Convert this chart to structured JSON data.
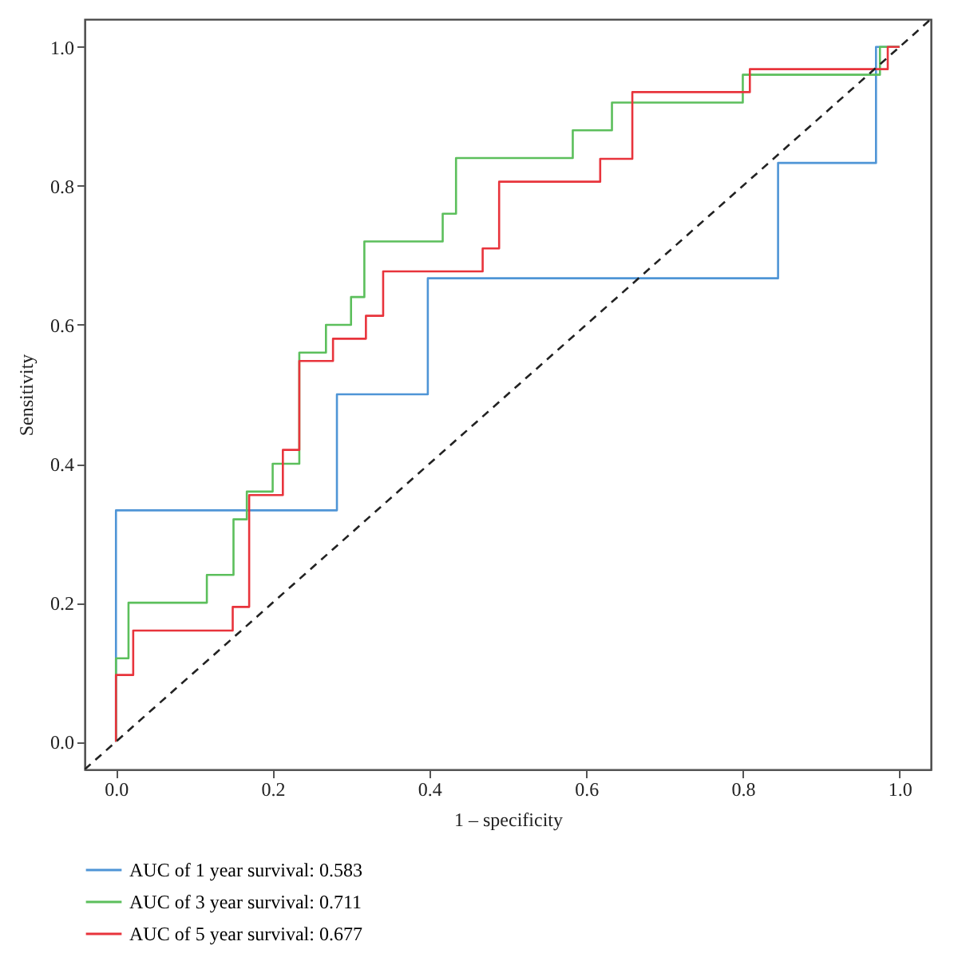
{
  "chart_data": {
    "type": "step",
    "xlabel": "1 – specificity",
    "ylabel": "Sensitivity",
    "xlim": [
      -0.04,
      1.04
    ],
    "ylim": [
      -0.04,
      1.04
    ],
    "xticks": [
      {
        "value": 0,
        "label": "0.0"
      },
      {
        "value": 0.2,
        "label": "0.2"
      },
      {
        "value": 0.4,
        "label": "0.4"
      },
      {
        "value": 0.6,
        "label": "0.6"
      },
      {
        "value": 0.8,
        "label": "0.8"
      },
      {
        "value": 1,
        "label": "1.0"
      }
    ],
    "yticks": [
      {
        "value": 0,
        "label": "0.0"
      },
      {
        "value": 0.2,
        "label": "0.2"
      },
      {
        "value": 0.4,
        "label": "0.4"
      },
      {
        "value": 0.6,
        "label": "0.6"
      },
      {
        "value": 0.8,
        "label": "0.8"
      },
      {
        "value": 1,
        "label": "1.0"
      }
    ],
    "grid": false,
    "legend": "bottom",
    "series": [
      {
        "name": "AUC of 1 year survival: 0.583",
        "color": "#4f95d6",
        "x": [
          0,
          0,
          0.282,
          0.398,
          0.845,
          0.97,
          1
        ],
        "values": [
          0,
          0.333,
          0.5,
          0.667,
          0.833,
          1,
          1
        ]
      },
      {
        "name": "AUC of 3 year survival: 0.711",
        "color": "#5cbf5c",
        "x": [
          0,
          0,
          0.016,
          0.116,
          0.15,
          0.167,
          0.2,
          0.234,
          0.268,
          0.3,
          0.317,
          0.417,
          0.434,
          0.583,
          0.633,
          0.8,
          0.975,
          1
        ],
        "values": [
          0,
          0.12,
          0.2,
          0.24,
          0.32,
          0.36,
          0.4,
          0.56,
          0.6,
          0.64,
          0.72,
          0.76,
          0.84,
          0.88,
          0.92,
          0.96,
          1,
          1
        ]
      },
      {
        "name": "AUC of 5 year survival: 0.677",
        "color": "#e8343c",
        "x": [
          0,
          0,
          0.022,
          0.149,
          0.17,
          0.213,
          0.234,
          0.277,
          0.319,
          0.341,
          0.468,
          0.489,
          0.618,
          0.659,
          0.809,
          0.985,
          1
        ],
        "values": [
          0,
          0.096,
          0.16,
          0.194,
          0.355,
          0.42,
          0.548,
          0.58,
          0.613,
          0.677,
          0.71,
          0.806,
          0.839,
          0.935,
          0.968,
          1,
          1
        ]
      },
      {
        "type": "line",
        "color": "#222222",
        "line_style": "dashed",
        "x": [
          -0.04,
          1.04
        ],
        "values": [
          -0.04,
          1.04
        ]
      }
    ]
  }
}
